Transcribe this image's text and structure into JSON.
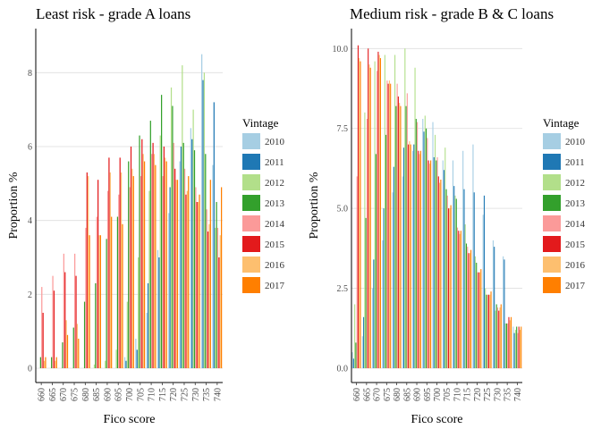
{
  "chart_data": [
    {
      "type": "bar",
      "title": "Least risk - grade A loans",
      "xlabel": "Fico score",
      "ylabel": "Proportion %",
      "ylim": [
        0,
        9
      ],
      "yticks": [
        0,
        2,
        4,
        6,
        8
      ],
      "grid": "horizontal major lines",
      "categories": [
        "660",
        "665",
        "670",
        "675",
        "680",
        "685",
        "690",
        "695",
        "700",
        "705",
        "710",
        "715",
        "720",
        "725",
        "730",
        "735",
        "740"
      ],
      "legend_title": "Vintage",
      "legend_position": "right",
      "series": [
        {
          "name": "2010",
          "color": "#a6cee3",
          "values": [
            0,
            0,
            0,
            0,
            0,
            0,
            0,
            0,
            0.3,
            0.8,
            1.5,
            3.2,
            4.2,
            5.6,
            6.5,
            8.5,
            5.5
          ]
        },
        {
          "name": "2011",
          "color": "#1f78b4",
          "values": [
            0,
            0,
            0,
            0,
            0,
            0,
            0,
            0,
            0.2,
            0.5,
            2.3,
            3.0,
            4.9,
            6.0,
            6.2,
            7.8,
            7.2
          ]
        },
        {
          "name": "2012",
          "color": "#b2df8a",
          "values": [
            0,
            0,
            0,
            0,
            0,
            0.1,
            0.2,
            0.5,
            1.8,
            3.0,
            4.8,
            6.3,
            7.6,
            8.2,
            7.0,
            8.0,
            3.8
          ]
        },
        {
          "name": "2013",
          "color": "#33a02c",
          "values": [
            0.3,
            0.3,
            0.7,
            1.1,
            1.8,
            2.3,
            3.5,
            4.1,
            5.6,
            6.3,
            6.7,
            7.4,
            7.1,
            6.1,
            5.9,
            5.8,
            4.5
          ]
        },
        {
          "name": "2014",
          "color": "#fb9a99",
          "values": [
            2.2,
            2.5,
            3.1,
            3.1,
            3.8,
            4.1,
            4.8,
            4.7,
            4.9,
            5.2,
            5.8,
            5.2,
            6.1,
            5.4,
            4.9,
            4.3,
            3.8
          ]
        },
        {
          "name": "2015",
          "color": "#e31a1c",
          "values": [
            1.5,
            2.1,
            2.6,
            2.5,
            5.3,
            5.1,
            5.7,
            5.7,
            6.0,
            6.2,
            6.1,
            6.0,
            5.4,
            4.7,
            4.5,
            3.7,
            3.0
          ]
        },
        {
          "name": "2016",
          "color": "#fdbf6f",
          "values": [
            0.2,
            0.2,
            1.3,
            1.2,
            5.2,
            3.6,
            5.3,
            5.3,
            5.4,
            5.8,
            5.8,
            5.7,
            5.1,
            4.8,
            4.5,
            3.9,
            3.6
          ]
        },
        {
          "name": "2017",
          "color": "#ff7f00",
          "values": [
            0.3,
            0.3,
            0.9,
            0.8,
            3.6,
            3.6,
            4.1,
            3.9,
            5.2,
            5.6,
            5.5,
            5.6,
            5.1,
            5.2,
            4.7,
            5.1,
            4.9
          ]
        }
      ]
    },
    {
      "type": "bar",
      "title": "Medium risk - grade B & C loans",
      "xlabel": "Fico score",
      "ylabel": "Proportion %",
      "ylim": [
        0,
        10.4
      ],
      "yticks": [
        "0.0",
        "2.5",
        "5.0",
        "7.5",
        "10.0"
      ],
      "grid": "horizontal major lines",
      "categories": [
        "660",
        "665",
        "670",
        "675",
        "680",
        "685",
        "690",
        "695",
        "700",
        "705",
        "710",
        "715",
        "720",
        "725",
        "730",
        "735",
        "740"
      ],
      "legend_title": "Vintage",
      "legend_position": "right",
      "series": [
        {
          "name": "2010",
          "color": "#a6cee3",
          "values": [
            0.5,
            1.0,
            2.5,
            4.0,
            5.5,
            6.0,
            6.8,
            7.8,
            7.7,
            6.5,
            6.5,
            6.8,
            7.0,
            4.8,
            4.0,
            3.5,
            1.3
          ]
        },
        {
          "name": "2011",
          "color": "#1f78b4",
          "values": [
            0.3,
            1.6,
            3.4,
            5.0,
            6.3,
            6.9,
            7.0,
            7.4,
            6.6,
            6.2,
            5.7,
            5.6,
            5.5,
            5.4,
            3.8,
            3.4,
            1.1
          ]
        },
        {
          "name": "2012",
          "color": "#b2df8a",
          "values": [
            2.0,
            8.0,
            9.6,
            9.8,
            9.8,
            10.0,
            9.4,
            7.9,
            7.3,
            6.9,
            5.4,
            4.5,
            3.5,
            2.5,
            1.8,
            1.4,
            1.2
          ]
        },
        {
          "name": "2013",
          "color": "#33a02c",
          "values": [
            0.8,
            4.7,
            6.7,
            7.3,
            8.2,
            8.2,
            7.8,
            7.5,
            6.5,
            5.6,
            5.3,
            3.9,
            3.3,
            2.3,
            2.0,
            1.4,
            1.3
          ]
        },
        {
          "name": "2014",
          "color": "#fb9a99",
          "values": [
            6.0,
            7.8,
            9.3,
            9.0,
            8.9,
            8.6,
            7.7,
            7.2,
            6.6,
            5.4,
            4.4,
            3.8,
            3.0,
            2.3,
            1.9,
            1.4,
            1.1
          ]
        },
        {
          "name": "2015",
          "color": "#e31a1c",
          "values": [
            10.1,
            10.0,
            9.9,
            8.9,
            8.5,
            7.0,
            6.8,
            6.5,
            6.0,
            5.0,
            4.3,
            3.6,
            3.0,
            2.3,
            1.8,
            1.6,
            1.3
          ]
        },
        {
          "name": "2016",
          "color": "#fdbf6f",
          "values": [
            9.7,
            9.5,
            9.8,
            9.0,
            8.3,
            7.1,
            6.7,
            6.4,
            5.8,
            5.0,
            4.2,
            3.6,
            3.0,
            2.3,
            1.9,
            1.5,
            1.2
          ]
        },
        {
          "name": "2017",
          "color": "#ff7f00",
          "values": [
            9.6,
            9.4,
            9.7,
            8.9,
            8.2,
            7.0,
            6.8,
            6.5,
            5.9,
            5.1,
            4.3,
            3.7,
            3.1,
            2.4,
            2.0,
            1.6,
            1.3
          ]
        }
      ]
    }
  ]
}
